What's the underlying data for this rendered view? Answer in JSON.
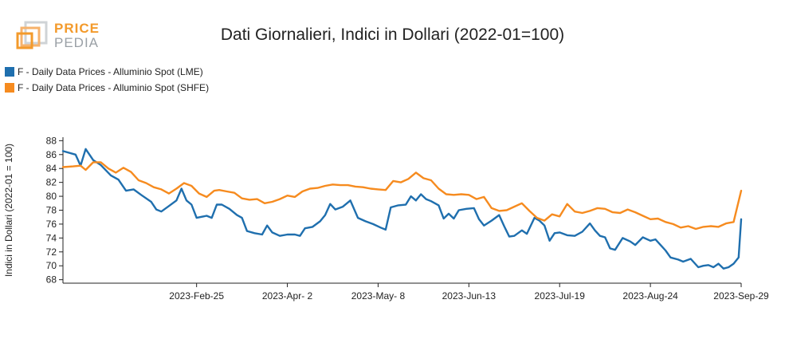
{
  "logo": {
    "line1": "PRICE",
    "line2": "PEDIA"
  },
  "chart_data": {
    "type": "line",
    "title": "Dati Giornalieri, Indici in Dollari (2022-01=100)",
    "ylabel": "Indici in Dollari (2022-01 = 100)",
    "xlabel": "",
    "ylim": [
      67.5,
      88.5
    ],
    "yticks": [
      68,
      70,
      72,
      74,
      76,
      78,
      80,
      82,
      84,
      86,
      88
    ],
    "x_start": "2023-01-03",
    "x_end": "2023-09-29",
    "xticks": [
      {
        "date": "2023-02-25",
        "label": "2023-Feb-25"
      },
      {
        "date": "2023-04-02",
        "label": "2023-Apr- 2"
      },
      {
        "date": "2023-05-08",
        "label": "2023-May- 8"
      },
      {
        "date": "2023-06-13",
        "label": "2023-Jun-13"
      },
      {
        "date": "2023-07-19",
        "label": "2023-Jul-19"
      },
      {
        "date": "2023-08-24",
        "label": "2023-Aug-24"
      },
      {
        "date": "2023-09-29",
        "label": "2023-Sep-29"
      }
    ],
    "legend_position": "top-left",
    "series": [
      {
        "name": "F - Daily Data Prices - Alluminio Spot (LME)",
        "color": "#1f6fae",
        "points": [
          [
            "2023-01-03",
            86.5
          ],
          [
            "2023-01-08",
            86.0
          ],
          [
            "2023-01-10",
            84.4
          ],
          [
            "2023-01-12",
            86.8
          ],
          [
            "2023-01-15",
            85.2
          ],
          [
            "2023-01-18",
            84.5
          ],
          [
            "2023-01-22",
            83.0
          ],
          [
            "2023-01-25",
            82.4
          ],
          [
            "2023-01-28",
            80.8
          ],
          [
            "2023-01-31",
            81.0
          ],
          [
            "2023-02-03",
            80.2
          ],
          [
            "2023-02-07",
            79.2
          ],
          [
            "2023-02-09",
            78.1
          ],
          [
            "2023-02-11",
            77.8
          ],
          [
            "2023-02-14",
            78.6
          ],
          [
            "2023-02-17",
            79.4
          ],
          [
            "2023-02-19",
            81.1
          ],
          [
            "2023-02-21",
            79.4
          ],
          [
            "2023-02-23",
            78.8
          ],
          [
            "2023-02-25",
            76.9
          ],
          [
            "2023-03-01",
            77.2
          ],
          [
            "2023-03-03",
            76.9
          ],
          [
            "2023-03-05",
            78.8
          ],
          [
            "2023-03-07",
            78.8
          ],
          [
            "2023-03-10",
            78.2
          ],
          [
            "2023-03-13",
            77.3
          ],
          [
            "2023-03-15",
            76.9
          ],
          [
            "2023-03-17",
            75.0
          ],
          [
            "2023-03-20",
            74.7
          ],
          [
            "2023-03-23",
            74.5
          ],
          [
            "2023-03-25",
            75.8
          ],
          [
            "2023-03-27",
            74.8
          ],
          [
            "2023-03-30",
            74.3
          ],
          [
            "2023-04-02",
            74.5
          ],
          [
            "2023-04-05",
            74.5
          ],
          [
            "2023-04-07",
            74.3
          ],
          [
            "2023-04-09",
            75.4
          ],
          [
            "2023-04-12",
            75.6
          ],
          [
            "2023-04-15",
            76.4
          ],
          [
            "2023-04-17",
            77.3
          ],
          [
            "2023-04-19",
            78.9
          ],
          [
            "2023-04-21",
            78.1
          ],
          [
            "2023-04-24",
            78.5
          ],
          [
            "2023-04-27",
            79.4
          ],
          [
            "2023-04-30",
            76.9
          ],
          [
            "2023-05-03",
            76.4
          ],
          [
            "2023-05-06",
            76.0
          ],
          [
            "2023-05-09",
            75.5
          ],
          [
            "2023-05-11",
            75.2
          ],
          [
            "2023-05-13",
            78.4
          ],
          [
            "2023-05-16",
            78.7
          ],
          [
            "2023-05-19",
            78.8
          ],
          [
            "2023-05-21",
            80.0
          ],
          [
            "2023-05-23",
            79.4
          ],
          [
            "2023-05-25",
            80.3
          ],
          [
            "2023-05-27",
            79.6
          ],
          [
            "2023-05-29",
            79.3
          ],
          [
            "2023-06-01",
            78.7
          ],
          [
            "2023-06-03",
            76.8
          ],
          [
            "2023-06-05",
            77.5
          ],
          [
            "2023-06-07",
            76.8
          ],
          [
            "2023-06-09",
            78.0
          ],
          [
            "2023-06-12",
            78.2
          ],
          [
            "2023-06-15",
            78.3
          ],
          [
            "2023-06-17",
            76.7
          ],
          [
            "2023-06-19",
            75.8
          ],
          [
            "2023-06-22",
            76.5
          ],
          [
            "2023-06-25",
            77.3
          ],
          [
            "2023-06-27",
            75.7
          ],
          [
            "2023-06-29",
            74.2
          ],
          [
            "2023-07-01",
            74.3
          ],
          [
            "2023-07-04",
            75.1
          ],
          [
            "2023-07-06",
            74.6
          ],
          [
            "2023-07-09",
            76.9
          ],
          [
            "2023-07-11",
            76.5
          ],
          [
            "2023-07-13",
            75.8
          ],
          [
            "2023-07-15",
            73.6
          ],
          [
            "2023-07-17",
            74.7
          ],
          [
            "2023-07-19",
            74.8
          ],
          [
            "2023-07-22",
            74.4
          ],
          [
            "2023-07-25",
            74.3
          ],
          [
            "2023-07-28",
            74.9
          ],
          [
            "2023-07-31",
            76.1
          ],
          [
            "2023-08-02",
            75.1
          ],
          [
            "2023-08-04",
            74.3
          ],
          [
            "2023-08-06",
            74.1
          ],
          [
            "2023-08-08",
            72.5
          ],
          [
            "2023-08-10",
            72.3
          ],
          [
            "2023-08-13",
            74.0
          ],
          [
            "2023-08-16",
            73.5
          ],
          [
            "2023-08-18",
            73.0
          ],
          [
            "2023-08-21",
            74.1
          ],
          [
            "2023-08-24",
            73.6
          ],
          [
            "2023-08-26",
            73.8
          ],
          [
            "2023-08-28",
            73.0
          ],
          [
            "2023-08-30",
            72.2
          ],
          [
            "2023-09-01",
            71.2
          ],
          [
            "2023-09-04",
            70.9
          ],
          [
            "2023-09-06",
            70.6
          ],
          [
            "2023-09-09",
            71.0
          ],
          [
            "2023-09-12",
            69.8
          ],
          [
            "2023-09-14",
            70.0
          ],
          [
            "2023-09-16",
            70.1
          ],
          [
            "2023-09-18",
            69.8
          ],
          [
            "2023-09-20",
            70.3
          ],
          [
            "2023-09-22",
            69.6
          ],
          [
            "2023-09-24",
            69.8
          ],
          [
            "2023-09-26",
            70.3
          ],
          [
            "2023-09-28",
            71.2
          ],
          [
            "2023-09-29",
            76.7
          ]
        ]
      },
      {
        "name": "F - Daily Data Prices - Alluminio Spot (SHFE)",
        "color": "#f68b1f",
        "points": [
          [
            "2023-01-03",
            84.2
          ],
          [
            "2023-01-07",
            84.3
          ],
          [
            "2023-01-10",
            84.4
          ],
          [
            "2023-01-12",
            83.8
          ],
          [
            "2023-01-15",
            84.9
          ],
          [
            "2023-01-18",
            84.9
          ],
          [
            "2023-01-21",
            84.0
          ],
          [
            "2023-01-24",
            83.4
          ],
          [
            "2023-01-27",
            84.1
          ],
          [
            "2023-01-30",
            83.5
          ],
          [
            "2023-02-02",
            82.3
          ],
          [
            "2023-02-05",
            81.9
          ],
          [
            "2023-02-08",
            81.3
          ],
          [
            "2023-02-11",
            81.0
          ],
          [
            "2023-02-14",
            80.4
          ],
          [
            "2023-02-17",
            81.1
          ],
          [
            "2023-02-20",
            81.9
          ],
          [
            "2023-02-23",
            81.5
          ],
          [
            "2023-02-26",
            80.4
          ],
          [
            "2023-03-01",
            79.9
          ],
          [
            "2023-03-04",
            80.8
          ],
          [
            "2023-03-06",
            80.9
          ],
          [
            "2023-03-09",
            80.7
          ],
          [
            "2023-03-12",
            80.5
          ],
          [
            "2023-03-15",
            79.7
          ],
          [
            "2023-03-18",
            79.5
          ],
          [
            "2023-03-21",
            79.6
          ],
          [
            "2023-03-24",
            79.0
          ],
          [
            "2023-03-27",
            79.2
          ],
          [
            "2023-03-30",
            79.6
          ],
          [
            "2023-04-02",
            80.1
          ],
          [
            "2023-04-05",
            79.9
          ],
          [
            "2023-04-08",
            80.7
          ],
          [
            "2023-04-11",
            81.1
          ],
          [
            "2023-04-14",
            81.2
          ],
          [
            "2023-04-17",
            81.5
          ],
          [
            "2023-04-20",
            81.7
          ],
          [
            "2023-04-23",
            81.6
          ],
          [
            "2023-04-26",
            81.6
          ],
          [
            "2023-04-29",
            81.4
          ],
          [
            "2023-05-02",
            81.3
          ],
          [
            "2023-05-05",
            81.1
          ],
          [
            "2023-05-08",
            81.0
          ],
          [
            "2023-05-11",
            80.9
          ],
          [
            "2023-05-14",
            82.2
          ],
          [
            "2023-05-17",
            82.0
          ],
          [
            "2023-05-20",
            82.5
          ],
          [
            "2023-05-23",
            83.4
          ],
          [
            "2023-05-26",
            82.6
          ],
          [
            "2023-05-29",
            82.3
          ],
          [
            "2023-06-01",
            81.1
          ],
          [
            "2023-06-04",
            80.3
          ],
          [
            "2023-06-07",
            80.2
          ],
          [
            "2023-06-10",
            80.3
          ],
          [
            "2023-06-13",
            80.2
          ],
          [
            "2023-06-16",
            79.6
          ],
          [
            "2023-06-19",
            79.9
          ],
          [
            "2023-06-22",
            78.3
          ],
          [
            "2023-06-25",
            77.9
          ],
          [
            "2023-06-28",
            78.0
          ],
          [
            "2023-07-01",
            78.5
          ],
          [
            "2023-07-04",
            79.0
          ],
          [
            "2023-07-07",
            77.9
          ],
          [
            "2023-07-10",
            76.9
          ],
          [
            "2023-07-13",
            76.5
          ],
          [
            "2023-07-16",
            77.4
          ],
          [
            "2023-07-19",
            77.1
          ],
          [
            "2023-07-22",
            78.9
          ],
          [
            "2023-07-25",
            77.8
          ],
          [
            "2023-07-28",
            77.6
          ],
          [
            "2023-07-31",
            77.9
          ],
          [
            "2023-08-03",
            78.3
          ],
          [
            "2023-08-06",
            78.2
          ],
          [
            "2023-08-09",
            77.7
          ],
          [
            "2023-08-12",
            77.6
          ],
          [
            "2023-08-15",
            78.1
          ],
          [
            "2023-08-18",
            77.7
          ],
          [
            "2023-08-21",
            77.2
          ],
          [
            "2023-08-24",
            76.7
          ],
          [
            "2023-08-27",
            76.8
          ],
          [
            "2023-08-30",
            76.3
          ],
          [
            "2023-09-02",
            76.0
          ],
          [
            "2023-09-05",
            75.5
          ],
          [
            "2023-09-08",
            75.7
          ],
          [
            "2023-09-11",
            75.3
          ],
          [
            "2023-09-14",
            75.6
          ],
          [
            "2023-09-17",
            75.7
          ],
          [
            "2023-09-20",
            75.6
          ],
          [
            "2023-09-23",
            76.1
          ],
          [
            "2023-09-26",
            76.3
          ],
          [
            "2023-09-29",
            80.8
          ]
        ]
      }
    ]
  }
}
